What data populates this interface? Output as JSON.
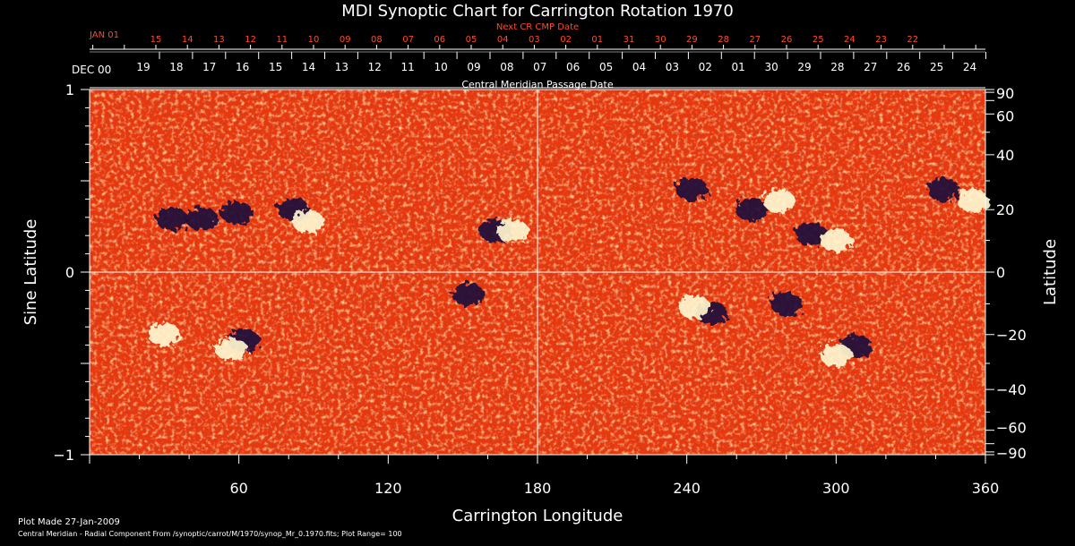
{
  "chart_data": {
    "type": "heatmap",
    "title": "MDI Synoptic Chart for Carrington Rotation 1970",
    "xlabel": "Carrington Longitude",
    "ylabel_left": "Sine Latitude",
    "ylabel_right": "Latitude",
    "xlim": [
      0,
      360
    ],
    "x_ticks": [
      "60",
      "120",
      "180",
      "240",
      "300",
      "360"
    ],
    "y_ticks_left": [
      "1",
      "0",
      "-1"
    ],
    "y_ticks_right": [
      "90",
      "60",
      "40",
      "20",
      "0",
      "-20",
      "-40",
      "-60",
      "-90"
    ],
    "top_axis_title": "Next CR CMP Date",
    "top_axis_start_label": "JAN 01",
    "top_axis_labels": [
      "15",
      "14",
      "13",
      "12",
      "11",
      "10",
      "09",
      "08",
      "07",
      "06",
      "05",
      "04",
      "03",
      "02",
      "01",
      "31",
      "30",
      "29",
      "28",
      "27",
      "26",
      "25",
      "24",
      "23",
      "22"
    ],
    "cmp_axis_title": "Central Meridian Passage Date",
    "cmp_axis_start_label": "DEC 00",
    "cmp_axis_labels": [
      "19",
      "18",
      "17",
      "16",
      "15",
      "14",
      "13",
      "12",
      "11",
      "10",
      "09",
      "08",
      "07",
      "06",
      "05",
      "04",
      "03",
      "02",
      "01",
      "30",
      "29",
      "28",
      "27",
      "26",
      "25",
      "24"
    ],
    "colorbar_range": 100,
    "regions": [
      {
        "lon": 33,
        "lat": 17,
        "polarity": "negative"
      },
      {
        "lon": 45,
        "lat": 17,
        "polarity": "negative"
      },
      {
        "lon": 59,
        "lat": 19,
        "polarity": "negative"
      },
      {
        "lon": 82,
        "lat": 20,
        "polarity": "negative"
      },
      {
        "lon": 88,
        "lat": 16,
        "polarity": "positive"
      },
      {
        "lon": 163,
        "lat": 13,
        "polarity": "negative"
      },
      {
        "lon": 170,
        "lat": 13,
        "polarity": "positive"
      },
      {
        "lon": 62,
        "lat": -22,
        "polarity": "negative"
      },
      {
        "lon": 57,
        "lat": -25,
        "polarity": "positive"
      },
      {
        "lon": 30,
        "lat": -20,
        "polarity": "positive"
      },
      {
        "lon": 152,
        "lat": -7,
        "polarity": "negative"
      },
      {
        "lon": 242,
        "lat": 27,
        "polarity": "negative"
      },
      {
        "lon": 266,
        "lat": 20,
        "polarity": "negative"
      },
      {
        "lon": 277,
        "lat": 23,
        "polarity": "positive"
      },
      {
        "lon": 290,
        "lat": 12,
        "polarity": "negative"
      },
      {
        "lon": 300,
        "lat": 10,
        "polarity": "positive"
      },
      {
        "lon": 343,
        "lat": 27,
        "polarity": "negative"
      },
      {
        "lon": 355,
        "lat": 23,
        "polarity": "positive"
      },
      {
        "lon": 250,
        "lat": -13,
        "polarity": "negative"
      },
      {
        "lon": 243,
        "lat": -11,
        "polarity": "positive"
      },
      {
        "lon": 280,
        "lat": -10,
        "polarity": "negative"
      },
      {
        "lon": 308,
        "lat": -24,
        "polarity": "negative"
      },
      {
        "lon": 300,
        "lat": -27,
        "polarity": "positive"
      }
    ]
  },
  "footer": {
    "plot_made": "Plot Made 27-Jan-2009",
    "info": "Central Meridian - Radial Component From /synoptic/carrot/M/1970/synop_Mr_0.1970.fits; Plot Range=  100"
  },
  "colors": {
    "field_base": "#e8380e",
    "positive": "#fff7d0",
    "negative": "#1c0a3a",
    "top_axis": "#ff4a2a"
  }
}
